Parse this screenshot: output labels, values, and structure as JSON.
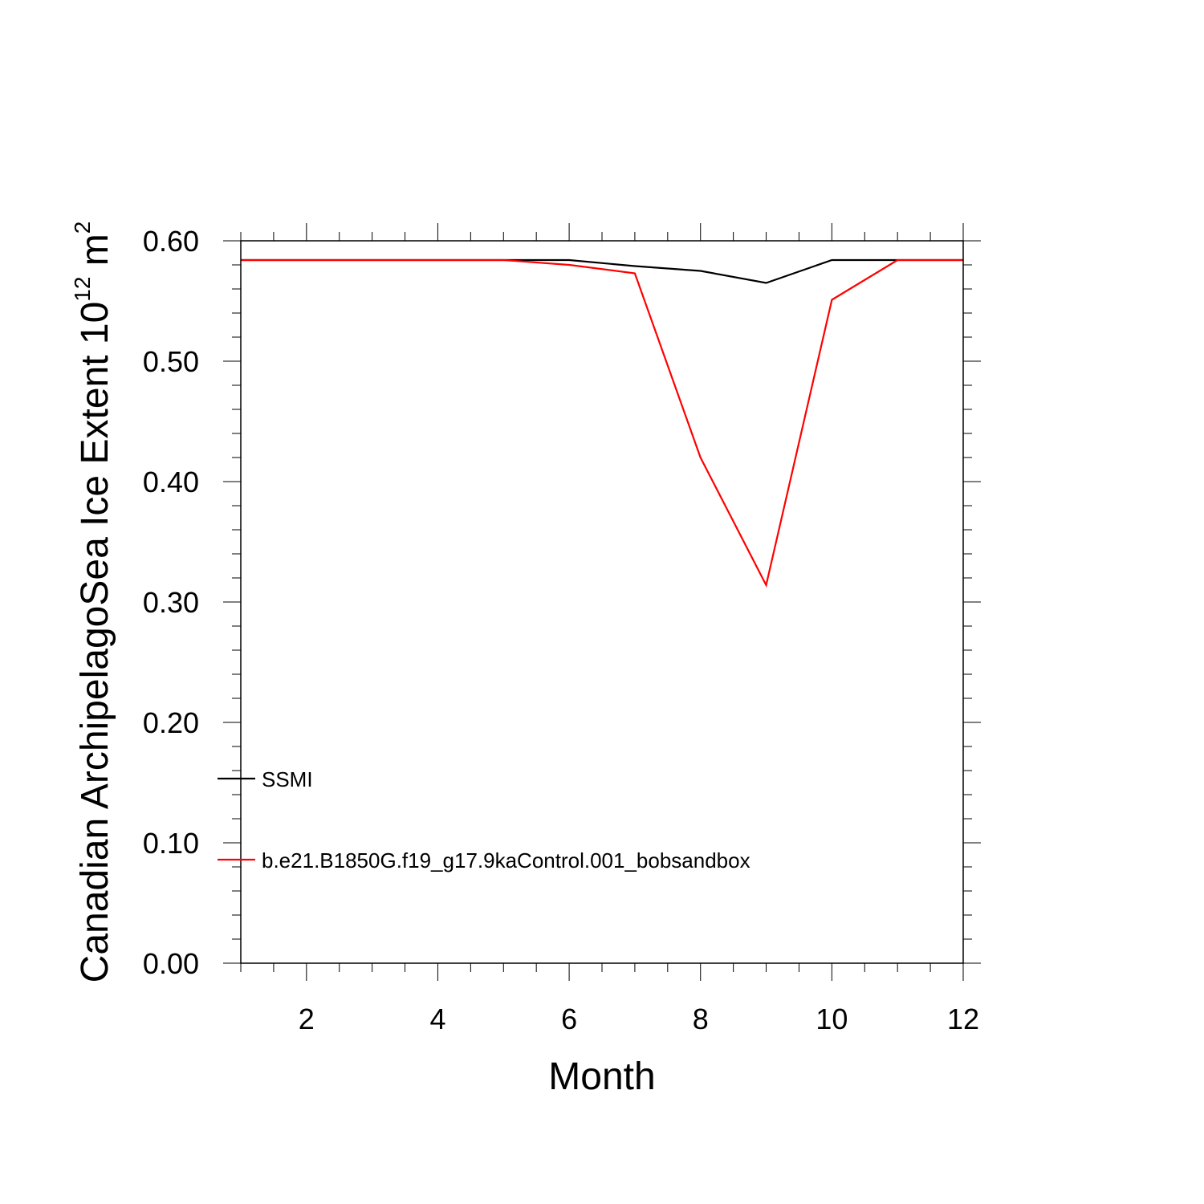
{
  "chart_data": {
    "type": "line",
    "title": "",
    "xlabel": "Month",
    "ylabel": {
      "base": "Canadian ArchipelagoSea Ice Extent 10",
      "exponent": "12",
      "unit_prefix": " m",
      "unit_exponent": "2"
    },
    "xlim": [
      1,
      12
    ],
    "ylim": [
      0,
      0.6
    ],
    "x_ticks": [
      2,
      4,
      6,
      8,
      10,
      12
    ],
    "y_ticks": [
      "0.00",
      "0.10",
      "0.20",
      "0.30",
      "0.40",
      "0.50",
      "0.60"
    ],
    "x": [
      1,
      2,
      3,
      4,
      5,
      6,
      7,
      8,
      9,
      10,
      11,
      12
    ],
    "series": [
      {
        "name": "SSMI",
        "color": "#000000",
        "values": [
          0.584,
          0.584,
          0.584,
          0.584,
          0.584,
          0.584,
          0.579,
          0.575,
          0.565,
          0.584,
          0.584,
          0.584
        ]
      },
      {
        "name": "b.e21.B1850G.f19_g17.9kaControl.001_bobsandbox",
        "color": "#ff0000",
        "values": [
          0.584,
          0.584,
          0.584,
          0.584,
          0.584,
          0.58,
          0.573,
          0.42,
          0.314,
          0.551,
          0.584,
          0.584
        ]
      }
    ],
    "grid": false,
    "legend_position": "inside-bottom-left"
  }
}
